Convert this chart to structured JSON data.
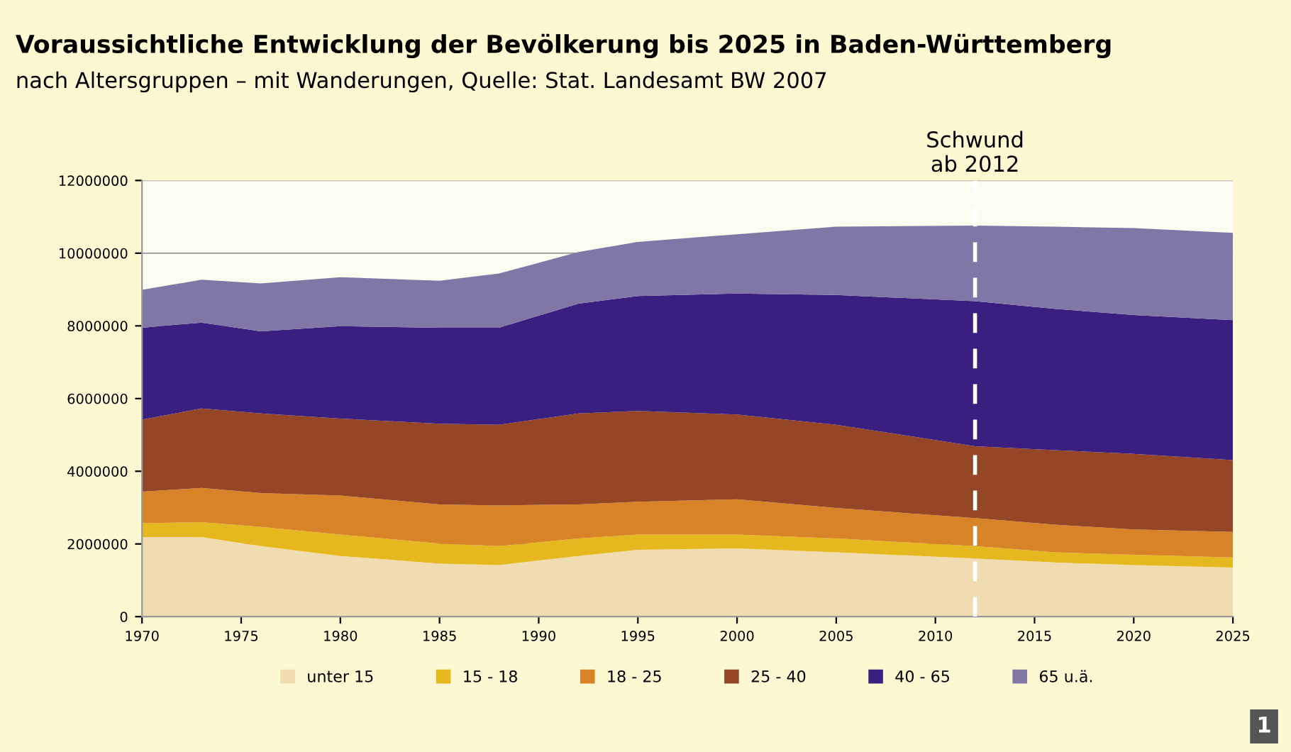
{
  "chart_data": {
    "type": "area",
    "stacked": true,
    "title": "Voraussichtliche Entwicklung der Bevölkerung bis 2025 in Baden-Württemberg",
    "subtitle": "nach Altersgruppen – mit Wanderungen, Quelle: Stat. Landesamt BW 2007",
    "x": [
      1970,
      1973,
      1976,
      1980,
      1985,
      1988,
      1992,
      1995,
      2000,
      2005,
      2012,
      2016,
      2020,
      2025
    ],
    "series": [
      {
        "name": "unter 15",
        "color": "#f0dcb0",
        "values": [
          2190000,
          2190000,
          1940000,
          1670000,
          1460000,
          1420000,
          1670000,
          1840000,
          1880000,
          1770000,
          1600000,
          1490000,
          1420000,
          1350000
        ]
      },
      {
        "name": "15 - 18",
        "color": "#e6b820",
        "values": [
          380000,
          410000,
          530000,
          590000,
          550000,
          520000,
          480000,
          420000,
          380000,
          380000,
          340000,
          280000,
          280000,
          280000
        ]
      },
      {
        "name": "18 - 25",
        "color": "#d98328",
        "values": [
          870000,
          940000,
          930000,
          1070000,
          1080000,
          1120000,
          940000,
          900000,
          970000,
          840000,
          770000,
          760000,
          700000,
          700000
        ]
      },
      {
        "name": "25 - 40",
        "color": "#954626",
        "values": [
          1980000,
          2190000,
          2190000,
          2120000,
          2220000,
          2220000,
          2500000,
          2500000,
          2330000,
          2290000,
          1980000,
          2050000,
          2080000,
          1980000
        ]
      },
      {
        "name": "40 - 65",
        "color": "#3a1f80",
        "values": [
          2530000,
          2360000,
          2260000,
          2540000,
          2640000,
          2670000,
          3020000,
          3160000,
          3330000,
          3570000,
          3990000,
          3890000,
          3820000,
          3850000
        ]
      },
      {
        "name": "65 u.ä.",
        "color": "#8077a6",
        "values": [
          1040000,
          1180000,
          1320000,
          1350000,
          1290000,
          1490000,
          1420000,
          1490000,
          1630000,
          1880000,
          2080000,
          2260000,
          2390000,
          2400000
        ]
      }
    ],
    "xlim": [
      1970,
      2025
    ],
    "xticks": [
      1970,
      1975,
      1980,
      1985,
      1990,
      1995,
      2000,
      2005,
      2010,
      2015,
      2020,
      2025
    ],
    "ylim": [
      0,
      12000000
    ],
    "yticks": [
      0,
      2000000,
      4000000,
      6000000,
      8000000,
      10000000,
      12000000
    ],
    "grid": "y",
    "legend": "bottom",
    "ref_lines": [
      {
        "axis": "x",
        "value": 2012,
        "label": "Schwund\nab 2012",
        "color": "#ffffff",
        "line_style": "dashed"
      }
    ],
    "annotations": [
      "1"
    ]
  }
}
